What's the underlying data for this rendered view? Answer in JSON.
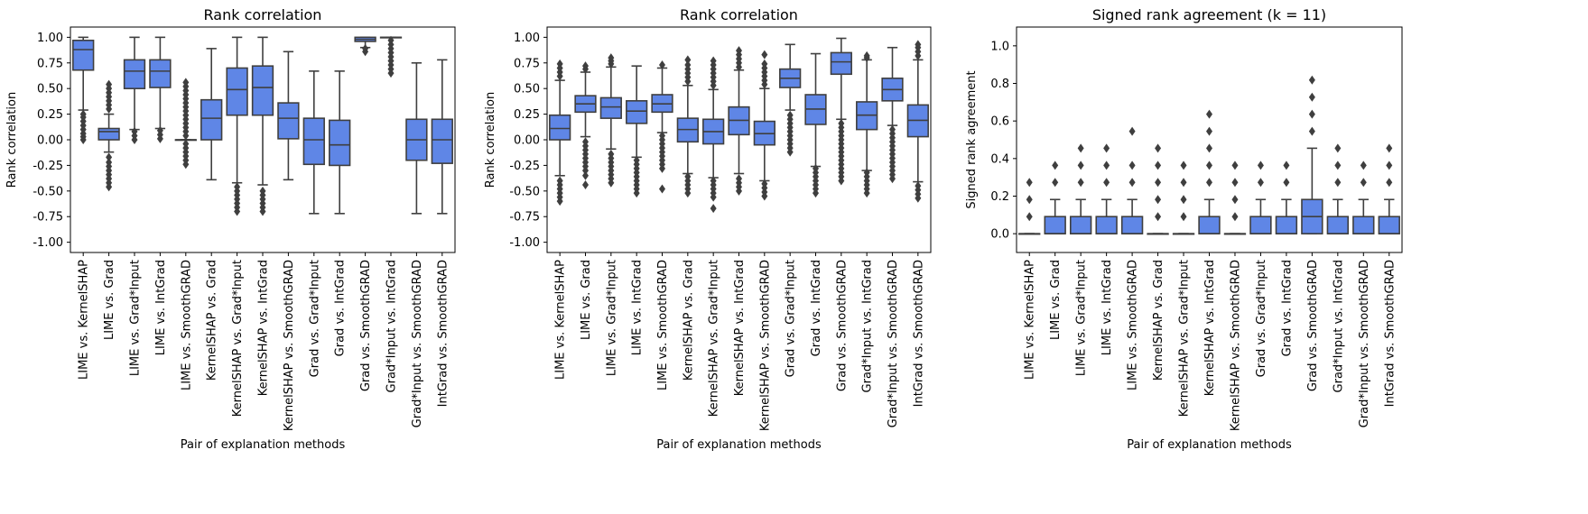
{
  "chart_data": [
    {
      "type": "box",
      "title": "Rank correlation",
      "xlabel": "Pair of explanation methods",
      "ylabel": "Rank correlation",
      "ylim": [
        -1.1,
        1.1
      ],
      "yticks": [
        "-1.00",
        "-0.75",
        "-0.50",
        "-0.25",
        "0.00",
        "0.25",
        "0.50",
        "0.75",
        "1.00"
      ],
      "categories": [
        "LIME vs. KernelSHAP",
        "LIME vs. Grad",
        "LIME vs. Grad*Input",
        "LIME vs. IntGrad",
        "LIME vs. SmoothGRAD",
        "KernelSHAP vs. Grad",
        "KernelSHAP vs. Grad*Input",
        "KernelSHAP vs. IntGrad",
        "KernelSHAP vs. SmoothGRAD",
        "Grad vs. Grad*Input",
        "Grad vs. IntGrad",
        "Grad vs. SmoothGRAD",
        "Grad*Input vs. IntGrad",
        "Grad*Input vs. SmoothGRAD",
        "IntGrad vs. SmoothGRAD"
      ],
      "boxes": [
        {
          "wlo": 0.29,
          "q1": 0.68,
          "med": 0.88,
          "q3": 0.97,
          "whi": 1.0,
          "fliers": [
            0.0,
            0.03,
            0.06,
            0.1,
            0.14,
            0.18,
            0.22,
            0.25
          ]
        },
        {
          "wlo": -0.12,
          "q1": 0.0,
          "med": 0.08,
          "q3": 0.11,
          "whi": 0.25,
          "fliers": [
            -0.46,
            -0.42,
            -0.38,
            -0.34,
            -0.3,
            -0.26,
            -0.22,
            -0.17,
            0.3,
            0.34,
            0.38,
            0.42,
            0.46,
            0.5,
            0.54
          ]
        },
        {
          "wlo": 0.1,
          "q1": 0.5,
          "med": 0.67,
          "q3": 0.78,
          "whi": 1.0,
          "fliers": [
            0.0,
            0.04,
            0.08
          ]
        },
        {
          "wlo": 0.11,
          "q1": 0.51,
          "med": 0.67,
          "q3": 0.78,
          "whi": 1.0,
          "fliers": [
            0.01,
            0.05,
            0.09
          ]
        },
        {
          "wlo": 0.0,
          "q1": 0.0,
          "med": 0.0,
          "q3": 0.0,
          "whi": 0.0,
          "fliers": [
            -0.24,
            -0.2,
            -0.16,
            -0.12,
            -0.08,
            -0.04,
            0.04,
            0.08,
            0.12,
            0.16,
            0.2,
            0.24,
            0.28,
            0.32,
            0.36,
            0.4,
            0.44,
            0.48,
            0.52,
            0.56
          ]
        },
        {
          "wlo": -0.39,
          "q1": 0.0,
          "med": 0.21,
          "q3": 0.39,
          "whi": 0.89,
          "fliers": []
        },
        {
          "wlo": -0.42,
          "q1": 0.24,
          "med": 0.49,
          "q3": 0.7,
          "whi": 1.0,
          "fliers": [
            -0.7,
            -0.66,
            -0.62,
            -0.58,
            -0.54,
            -0.5,
            -0.46
          ]
        },
        {
          "wlo": -0.44,
          "q1": 0.24,
          "med": 0.51,
          "q3": 0.72,
          "whi": 1.0,
          "fliers": [
            -0.7,
            -0.66,
            -0.62,
            -0.58,
            -0.54,
            -0.5
          ]
        },
        {
          "wlo": -0.39,
          "q1": 0.01,
          "med": 0.21,
          "q3": 0.36,
          "whi": 0.86,
          "fliers": []
        },
        {
          "wlo": -0.72,
          "q1": -0.24,
          "med": 0.0,
          "q3": 0.21,
          "whi": 0.67,
          "fliers": []
        },
        {
          "wlo": -0.72,
          "q1": -0.25,
          "med": -0.05,
          "q3": 0.19,
          "whi": 0.67,
          "fliers": []
        },
        {
          "wlo": 0.9,
          "q1": 0.96,
          "med": 0.98,
          "q3": 1.0,
          "whi": 1.0,
          "fliers": [
            0.86,
            0.89
          ]
        },
        {
          "wlo": 1.0,
          "q1": 1.0,
          "med": 1.0,
          "q3": 1.0,
          "whi": 1.0,
          "fliers": [
            0.65,
            0.69,
            0.73,
            0.77,
            0.81,
            0.85,
            0.89,
            0.93,
            0.97
          ]
        },
        {
          "wlo": -0.72,
          "q1": -0.2,
          "med": 0.0,
          "q3": 0.2,
          "whi": 0.75,
          "fliers": []
        },
        {
          "wlo": -0.72,
          "q1": -0.23,
          "med": 0.0,
          "q3": 0.2,
          "whi": 0.78,
          "fliers": []
        }
      ]
    },
    {
      "type": "box",
      "title": "Rank correlation",
      "xlabel": "Pair of explanation methods",
      "ylabel": "Rank correlation",
      "ylim": [
        -1.1,
        1.1
      ],
      "yticks": [
        "-1.00",
        "-0.75",
        "-0.50",
        "-0.25",
        "0.00",
        "0.25",
        "0.50",
        "0.75",
        "1.00"
      ],
      "categories": [
        "LIME vs. KernelSHAP",
        "LIME vs. Grad",
        "LIME vs. Grad*Input",
        "LIME vs. IntGrad",
        "LIME vs. SmoothGRAD",
        "KernelSHAP vs. Grad",
        "KernelSHAP vs. Grad*Input",
        "KernelSHAP vs. IntGrad",
        "KernelSHAP vs. SmoothGRAD",
        "Grad vs. Grad*Input",
        "Grad vs. IntGrad",
        "Grad vs. SmoothGRAD",
        "Grad*Input vs. IntGrad",
        "Grad*Input vs. SmoothGRAD",
        "IntGrad vs. SmoothGRAD"
      ],
      "boxes": [
        {
          "wlo": -0.35,
          "q1": 0.0,
          "med": 0.11,
          "q3": 0.24,
          "whi": 0.58,
          "fliers": [
            -0.6,
            -0.56,
            -0.52,
            -0.48,
            -0.44,
            -0.4,
            0.62,
            0.66,
            0.7,
            0.74
          ]
        },
        {
          "wlo": 0.03,
          "q1": 0.27,
          "med": 0.35,
          "q3": 0.43,
          "whi": 0.66,
          "fliers": [
            -0.44,
            -0.35,
            -0.3,
            -0.26,
            -0.22,
            -0.18,
            -0.14,
            -0.1,
            -0.06,
            -0.02,
            0.69,
            0.72
          ]
        },
        {
          "wlo": -0.09,
          "q1": 0.21,
          "med": 0.32,
          "q3": 0.41,
          "whi": 0.71,
          "fliers": [
            -0.42,
            -0.38,
            -0.34,
            -0.3,
            -0.26,
            -0.22,
            -0.18,
            -0.14,
            0.74,
            0.77,
            0.8
          ]
        },
        {
          "wlo": -0.17,
          "q1": 0.16,
          "med": 0.28,
          "q3": 0.38,
          "whi": 0.72,
          "fliers": [
            -0.52,
            -0.48,
            -0.44,
            -0.4,
            -0.36,
            -0.32,
            -0.28,
            -0.24,
            -0.2
          ]
        },
        {
          "wlo": 0.07,
          "q1": 0.27,
          "med": 0.35,
          "q3": 0.44,
          "whi": 0.7,
          "fliers": [
            -0.48,
            -0.28,
            -0.24,
            -0.2,
            -0.16,
            -0.12,
            -0.08,
            -0.04,
            0.0,
            0.04,
            0.73
          ]
        },
        {
          "wlo": -0.33,
          "q1": -0.02,
          "med": 0.1,
          "q3": 0.21,
          "whi": 0.53,
          "fliers": [
            -0.52,
            -0.48,
            -0.44,
            -0.4,
            -0.36,
            0.57,
            0.61,
            0.65,
            0.69,
            0.73,
            0.78
          ]
        },
        {
          "wlo": -0.37,
          "q1": -0.04,
          "med": 0.08,
          "q3": 0.2,
          "whi": 0.49,
          "fliers": [
            -0.67,
            -0.56,
            -0.52,
            -0.48,
            -0.44,
            -0.4,
            0.53,
            0.57,
            0.61,
            0.65,
            0.69,
            0.73,
            0.77
          ]
        },
        {
          "wlo": -0.33,
          "q1": 0.05,
          "med": 0.19,
          "q3": 0.32,
          "whi": 0.68,
          "fliers": [
            -0.5,
            -0.46,
            -0.42,
            -0.38,
            0.71,
            0.75,
            0.79,
            0.83,
            0.87
          ]
        },
        {
          "wlo": -0.4,
          "q1": -0.05,
          "med": 0.06,
          "q3": 0.18,
          "whi": 0.5,
          "fliers": [
            -0.55,
            -0.51,
            -0.47,
            -0.43,
            0.54,
            0.58,
            0.62,
            0.66,
            0.7,
            0.74,
            0.83
          ]
        },
        {
          "wlo": 0.29,
          "q1": 0.51,
          "med": 0.6,
          "q3": 0.69,
          "whi": 0.93,
          "fliers": [
            -0.12,
            -0.08,
            -0.04,
            0.0,
            0.04,
            0.08,
            0.12,
            0.16,
            0.2,
            0.24
          ]
        },
        {
          "wlo": -0.26,
          "q1": 0.15,
          "med": 0.3,
          "q3": 0.44,
          "whi": 0.84,
          "fliers": [
            -0.52,
            -0.48,
            -0.44,
            -0.4,
            -0.36,
            -0.32,
            -0.28
          ]
        },
        {
          "wlo": 0.2,
          "q1": 0.64,
          "med": 0.76,
          "q3": 0.85,
          "whi": 0.99,
          "fliers": [
            -0.4,
            -0.36,
            -0.32,
            -0.28,
            -0.24,
            -0.2,
            -0.16,
            -0.12,
            -0.08,
            -0.04,
            0.0,
            0.04,
            0.08,
            0.12,
            0.16
          ]
        },
        {
          "wlo": -0.3,
          "q1": 0.1,
          "med": 0.24,
          "q3": 0.37,
          "whi": 0.78,
          "fliers": [
            -0.52,
            -0.48,
            -0.44,
            -0.4,
            -0.36,
            -0.32,
            0.8,
            0.82
          ]
        },
        {
          "wlo": 0.14,
          "q1": 0.38,
          "med": 0.49,
          "q3": 0.6,
          "whi": 0.9,
          "fliers": [
            -0.38,
            -0.34,
            -0.3,
            -0.26,
            -0.22,
            -0.18,
            -0.14,
            -0.1,
            -0.06,
            -0.02,
            0.02,
            0.06,
            0.1
          ]
        },
        {
          "wlo": -0.41,
          "q1": 0.03,
          "med": 0.19,
          "q3": 0.34,
          "whi": 0.78,
          "fliers": [
            -0.57,
            -0.53,
            -0.49,
            -0.45,
            0.82,
            0.86,
            0.9,
            0.93
          ]
        }
      ]
    },
    {
      "type": "box",
      "title": "Signed rank agreement (k = 11)",
      "xlabel": "Pair of explanation methods",
      "ylabel": "Signed rank agreement",
      "ylim": [
        -0.1,
        1.1
      ],
      "yticks": [
        "0.0",
        "0.2",
        "0.4",
        "0.6",
        "0.8",
        "1.0"
      ],
      "categories": [
        "LIME vs. KernelSHAP",
        "LIME vs. Grad",
        "LIME vs. Grad*Input",
        "LIME vs. IntGrad",
        "LIME vs. SmoothGRAD",
        "KernelSHAP vs. Grad",
        "KernelSHAP vs. Grad*Input",
        "KernelSHAP vs. IntGrad",
        "KernelSHAP vs. SmoothGRAD",
        "Grad vs. Grad*Input",
        "Grad vs. IntGrad",
        "Grad vs. SmoothGRAD",
        "Grad*Input vs. IntGrad",
        "Grad*Input vs. SmoothGRAD",
        "IntGrad vs. SmoothGRAD"
      ],
      "boxes": [
        {
          "wlo": 0.0,
          "q1": 0.0,
          "med": 0.0,
          "q3": 0.0,
          "whi": 0.0,
          "fliers": [
            0.091,
            0.182,
            0.273
          ]
        },
        {
          "wlo": 0.0,
          "q1": 0.0,
          "med": 0.0,
          "q3": 0.091,
          "whi": 0.182,
          "fliers": [
            0.273,
            0.364
          ]
        },
        {
          "wlo": 0.0,
          "q1": 0.0,
          "med": 0.0,
          "q3": 0.091,
          "whi": 0.182,
          "fliers": [
            0.273,
            0.364,
            0.455
          ]
        },
        {
          "wlo": 0.0,
          "q1": 0.0,
          "med": 0.0,
          "q3": 0.091,
          "whi": 0.182,
          "fliers": [
            0.273,
            0.364,
            0.455
          ]
        },
        {
          "wlo": 0.0,
          "q1": 0.0,
          "med": 0.0,
          "q3": 0.091,
          "whi": 0.182,
          "fliers": [
            0.273,
            0.364,
            0.545
          ]
        },
        {
          "wlo": 0.0,
          "q1": 0.0,
          "med": 0.0,
          "q3": 0.0,
          "whi": 0.0,
          "fliers": [
            0.091,
            0.182,
            0.273,
            0.364,
            0.455
          ]
        },
        {
          "wlo": 0.0,
          "q1": 0.0,
          "med": 0.0,
          "q3": 0.0,
          "whi": 0.0,
          "fliers": [
            0.091,
            0.182,
            0.273,
            0.364
          ]
        },
        {
          "wlo": 0.0,
          "q1": 0.0,
          "med": 0.0,
          "q3": 0.091,
          "whi": 0.182,
          "fliers": [
            0.273,
            0.364,
            0.455,
            0.545,
            0.636
          ]
        },
        {
          "wlo": 0.0,
          "q1": 0.0,
          "med": 0.0,
          "q3": 0.0,
          "whi": 0.0,
          "fliers": [
            0.091,
            0.182,
            0.273,
            0.364
          ]
        },
        {
          "wlo": 0.0,
          "q1": 0.0,
          "med": 0.0,
          "q3": 0.091,
          "whi": 0.182,
          "fliers": [
            0.273,
            0.364
          ]
        },
        {
          "wlo": 0.0,
          "q1": 0.0,
          "med": 0.0,
          "q3": 0.091,
          "whi": 0.182,
          "fliers": [
            0.273,
            0.364
          ]
        },
        {
          "wlo": 0.0,
          "q1": 0.0,
          "med": 0.091,
          "q3": 0.182,
          "whi": 0.455,
          "fliers": [
            0.545,
            0.636,
            0.727,
            0.818
          ]
        },
        {
          "wlo": 0.0,
          "q1": 0.0,
          "med": 0.0,
          "q3": 0.091,
          "whi": 0.182,
          "fliers": [
            0.273,
            0.364,
            0.455
          ]
        },
        {
          "wlo": 0.0,
          "q1": 0.0,
          "med": 0.0,
          "q3": 0.091,
          "whi": 0.182,
          "fliers": [
            0.273,
            0.364
          ]
        },
        {
          "wlo": 0.0,
          "q1": 0.0,
          "med": 0.0,
          "q3": 0.091,
          "whi": 0.182,
          "fliers": [
            0.273,
            0.364,
            0.455
          ]
        }
      ]
    }
  ],
  "colors": {
    "box": "#5f86e6",
    "line": "#3f3f3f"
  }
}
